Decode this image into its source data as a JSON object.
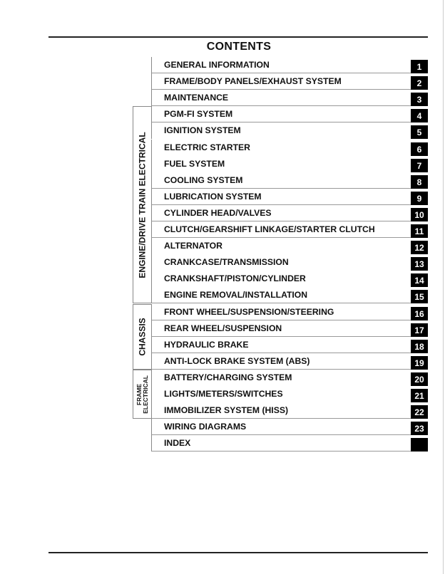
{
  "title": "CONTENTS",
  "groups": [
    {
      "label": "ENGINE/DRIVE TRAIN ELECTRICAL",
      "first": 3,
      "last": 14
    },
    {
      "label": "CHASSIS",
      "first": 15,
      "last": 18
    },
    {
      "label": "FRAME ELECTRICAL",
      "label_line1": "FRAME",
      "label_line2": "ELECTRICAL",
      "first": 19,
      "last": 21
    }
  ],
  "sections": [
    {
      "label": "GENERAL INFORMATION",
      "number": "1"
    },
    {
      "label": "FRAME/BODY PANELS/EXHAUST SYSTEM",
      "number": "2"
    },
    {
      "label": "MAINTENANCE",
      "number": "3"
    },
    {
      "label": "PGM-FI SYSTEM",
      "number": "4"
    },
    {
      "label": "IGNITION SYSTEM",
      "number": "5"
    },
    {
      "label": "ELECTRIC STARTER",
      "number": "6"
    },
    {
      "label": "FUEL SYSTEM",
      "number": "7"
    },
    {
      "label": "COOLING SYSTEM",
      "number": "8"
    },
    {
      "label": "LUBRICATION SYSTEM",
      "number": "9"
    },
    {
      "label": "CYLINDER HEAD/VALVES",
      "number": "10"
    },
    {
      "label": "CLUTCH/GEARSHIFT LINKAGE/STARTER CLUTCH",
      "number": "11"
    },
    {
      "label": "ALTERNATOR",
      "number": "12"
    },
    {
      "label": "CRANKCASE/TRANSMISSION",
      "number": "13"
    },
    {
      "label": "CRANKSHAFT/PISTON/CYLINDER",
      "number": "14"
    },
    {
      "label": "ENGINE REMOVAL/INSTALLATION",
      "number": "15"
    },
    {
      "label": "FRONT WHEEL/SUSPENSION/STEERING",
      "number": "16"
    },
    {
      "label": "REAR WHEEL/SUSPENSION",
      "number": "17"
    },
    {
      "label": "HYDRAULIC BRAKE",
      "number": "18"
    },
    {
      "label": "ANTI-LOCK BRAKE SYSTEM (ABS)",
      "number": "19"
    },
    {
      "label": "BATTERY/CHARGING SYSTEM",
      "number": "20"
    },
    {
      "label": "LIGHTS/METERS/SWITCHES",
      "number": "21"
    },
    {
      "label": "IMMOBILIZER SYSTEM (HISS)",
      "number": "22"
    },
    {
      "label": "WIRING DIAGRAMS",
      "number": "23"
    },
    {
      "label": "INDEX",
      "number": ""
    }
  ]
}
